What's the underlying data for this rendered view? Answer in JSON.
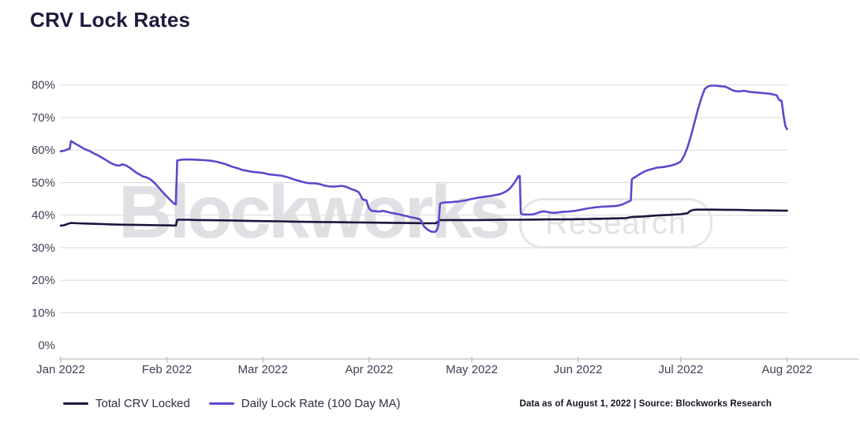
{
  "title": "CRV Lock Rates",
  "watermark": {
    "text": "Blockworks",
    "badge": "Research"
  },
  "footer": {
    "text": "Data as of August 1, 2022 | Source: Blockworks Research"
  },
  "chart_data": {
    "type": "line",
    "title": "CRV Lock Rates",
    "grid": "horizontal",
    "legend_position": "bottom-left",
    "x_axis": {
      "tick_labels": [
        "Jan 2022",
        "Feb 2022",
        "Mar 2022",
        "Apr 2022",
        "May 2022",
        "Jun 2022",
        "Jul 2022",
        "Aug 2022"
      ],
      "tick_days": [
        0,
        31,
        59,
        90,
        120,
        151,
        181,
        212
      ],
      "range_days": [
        0,
        212
      ]
    },
    "y_axis": {
      "min": 0,
      "max": 80,
      "step": 10,
      "suffix": "%",
      "tick_labels": [
        "0%",
        "10%",
        "20%",
        "30%",
        "40%",
        "50%",
        "60%",
        "70%",
        "80%"
      ]
    },
    "series": [
      {
        "name": "Total CRV Locked",
        "color": "#1b163f",
        "points": [
          [
            0,
            36.8
          ],
          [
            1,
            36.9
          ],
          [
            2,
            37.3
          ],
          [
            3,
            37.6
          ],
          [
            5,
            37.5
          ],
          [
            8,
            37.4
          ],
          [
            11,
            37.3
          ],
          [
            14,
            37.2
          ],
          [
            17,
            37.1
          ],
          [
            20,
            37.05
          ],
          [
            23,
            37.0
          ],
          [
            26,
            36.95
          ],
          [
            29,
            36.9
          ],
          [
            32,
            36.85
          ],
          [
            33.6,
            36.8
          ],
          [
            34,
            38.6
          ],
          [
            37,
            38.6
          ],
          [
            40,
            38.5
          ],
          [
            44,
            38.45
          ],
          [
            48,
            38.4
          ],
          [
            52,
            38.3
          ],
          [
            56,
            38.2
          ],
          [
            60,
            38.15
          ],
          [
            64,
            38.1
          ],
          [
            68,
            38.0
          ],
          [
            72,
            37.95
          ],
          [
            76,
            37.9
          ],
          [
            80,
            37.85
          ],
          [
            84,
            37.8
          ],
          [
            88,
            37.75
          ],
          [
            92,
            37.7
          ],
          [
            96,
            37.65
          ],
          [
            100,
            37.6
          ],
          [
            104,
            37.55
          ],
          [
            107,
            37.5
          ],
          [
            109.5,
            37.5
          ],
          [
            110.7,
            38.5
          ],
          [
            114,
            38.5
          ],
          [
            118,
            38.5
          ],
          [
            122,
            38.5
          ],
          [
            126,
            38.55
          ],
          [
            130,
            38.6
          ],
          [
            134,
            38.6
          ],
          [
            138,
            38.65
          ],
          [
            142,
            38.7
          ],
          [
            146,
            38.7
          ],
          [
            150,
            38.75
          ],
          [
            154,
            38.8
          ],
          [
            158,
            38.9
          ],
          [
            162,
            39.0
          ],
          [
            165,
            39.1
          ],
          [
            166.7,
            39.45
          ],
          [
            168,
            39.5
          ],
          [
            170,
            39.6
          ],
          [
            172,
            39.75
          ],
          [
            174,
            39.9
          ],
          [
            176,
            40.0
          ],
          [
            178,
            40.1
          ],
          [
            180,
            40.25
          ],
          [
            181,
            40.3
          ],
          [
            182,
            40.45
          ],
          [
            183,
            40.6
          ],
          [
            183.6,
            41.2
          ],
          [
            184.5,
            41.6
          ],
          [
            186,
            41.7
          ],
          [
            190,
            41.7
          ],
          [
            194,
            41.65
          ],
          [
            198,
            41.6
          ],
          [
            202,
            41.5
          ],
          [
            206,
            41.45
          ],
          [
            210,
            41.4
          ],
          [
            212,
            41.35
          ]
        ]
      },
      {
        "name": "Daily Lock Rate (100 Day MA)",
        "color": "#5a49cc",
        "points": [
          [
            0,
            59.6
          ],
          [
            1,
            59.8
          ],
          [
            2,
            60.2
          ],
          [
            2.6,
            60.4
          ],
          [
            3,
            62.8
          ],
          [
            4,
            62.1
          ],
          [
            5,
            61.5
          ],
          [
            6,
            60.9
          ],
          [
            7,
            60.3
          ],
          [
            8,
            59.9
          ],
          [
            9,
            59.4
          ],
          [
            10,
            58.8
          ],
          [
            11,
            58.3
          ],
          [
            12,
            57.7
          ],
          [
            13,
            57.1
          ],
          [
            14,
            56.4
          ],
          [
            15,
            55.8
          ],
          [
            16,
            55.4
          ],
          [
            17,
            55.2
          ],
          [
            18,
            55.6
          ],
          [
            19,
            55.3
          ],
          [
            20,
            54.7
          ],
          [
            21,
            53.9
          ],
          [
            22,
            53.1
          ],
          [
            23,
            52.5
          ],
          [
            24,
            51.9
          ],
          [
            25,
            51.6
          ],
          [
            26,
            51.1
          ],
          [
            27,
            50.3
          ],
          [
            28,
            49.2
          ],
          [
            29,
            48.0
          ],
          [
            30,
            46.8
          ],
          [
            31,
            45.7
          ],
          [
            32,
            44.6
          ],
          [
            33,
            43.6
          ],
          [
            33.6,
            43.3
          ],
          [
            34,
            56.8
          ],
          [
            35,
            57.0
          ],
          [
            36,
            57.1
          ],
          [
            38,
            57.1
          ],
          [
            40,
            57.0
          ],
          [
            42,
            56.9
          ],
          [
            44,
            56.7
          ],
          [
            45,
            56.5
          ],
          [
            46,
            56.3
          ],
          [
            47,
            56.0
          ],
          [
            48,
            55.7
          ],
          [
            49,
            55.3
          ],
          [
            50,
            54.9
          ],
          [
            51,
            54.6
          ],
          [
            52,
            54.3
          ],
          [
            53,
            53.9
          ],
          [
            54,
            53.7
          ],
          [
            55,
            53.5
          ],
          [
            56,
            53.3
          ],
          [
            57,
            53.2
          ],
          [
            58,
            53.1
          ],
          [
            59,
            53.0
          ],
          [
            60,
            52.7
          ],
          [
            61,
            52.5
          ],
          [
            63,
            52.3
          ],
          [
            64,
            52.2
          ],
          [
            65,
            52.0
          ],
          [
            66,
            51.7
          ],
          [
            67,
            51.4
          ],
          [
            68,
            51.0
          ],
          [
            69,
            50.7
          ],
          [
            70,
            50.4
          ],
          [
            71,
            50.1
          ],
          [
            72,
            49.9
          ],
          [
            73,
            49.8
          ],
          [
            74,
            49.8
          ],
          [
            75,
            49.7
          ],
          [
            76,
            49.4
          ],
          [
            77,
            49.1
          ],
          [
            78,
            48.9
          ],
          [
            79,
            48.8
          ],
          [
            80,
            48.8
          ],
          [
            81,
            48.9
          ],
          [
            82,
            49.0
          ],
          [
            83,
            48.8
          ],
          [
            84,
            48.4
          ],
          [
            85,
            47.9
          ],
          [
            86,
            47.6
          ],
          [
            87,
            47.0
          ],
          [
            87.6,
            45.9
          ],
          [
            88,
            45.0
          ],
          [
            88.4,
            44.7
          ],
          [
            89.2,
            44.6
          ],
          [
            89.6,
            43.2
          ],
          [
            90,
            42.1
          ],
          [
            90.5,
            41.5
          ],
          [
            91,
            41.3
          ],
          [
            92,
            41.2
          ],
          [
            93,
            41.1
          ],
          [
            94,
            41.3
          ],
          [
            95,
            41.1
          ],
          [
            96,
            40.8
          ],
          [
            97,
            40.6
          ],
          [
            98,
            40.4
          ],
          [
            99,
            40.2
          ],
          [
            100,
            39.9
          ],
          [
            101,
            39.7
          ],
          [
            102,
            39.4
          ],
          [
            103,
            39.2
          ],
          [
            104,
            39.0
          ],
          [
            105,
            38.6
          ],
          [
            105.5,
            37.6
          ],
          [
            106,
            36.6
          ],
          [
            107,
            35.6
          ],
          [
            108,
            35.0
          ],
          [
            109,
            34.8
          ],
          [
            109.6,
            35.1
          ],
          [
            110,
            36.0
          ],
          [
            110.3,
            37.3
          ],
          [
            110.7,
            43.5
          ],
          [
            111,
            43.7
          ],
          [
            112,
            43.9
          ],
          [
            114,
            44.0
          ],
          [
            116,
            44.2
          ],
          [
            118,
            44.5
          ],
          [
            120,
            45.0
          ],
          [
            122,
            45.4
          ],
          [
            124,
            45.7
          ],
          [
            126,
            46.0
          ],
          [
            128,
            46.4
          ],
          [
            129,
            46.8
          ],
          [
            130,
            47.3
          ],
          [
            131,
            48.1
          ],
          [
            132,
            49.3
          ],
          [
            133,
            50.9
          ],
          [
            133.6,
            52.0
          ],
          [
            134,
            52.0
          ],
          [
            134.3,
            40.5
          ],
          [
            135,
            40.2
          ],
          [
            136,
            40.2
          ],
          [
            137,
            40.2
          ],
          [
            138,
            40.3
          ],
          [
            139,
            40.6
          ],
          [
            140,
            41.0
          ],
          [
            141,
            41.2
          ],
          [
            142,
            41.0
          ],
          [
            143,
            40.8
          ],
          [
            144,
            40.7
          ],
          [
            145,
            40.8
          ],
          [
            146,
            41.0
          ],
          [
            148,
            41.1
          ],
          [
            150,
            41.3
          ],
          [
            151,
            41.5
          ],
          [
            152,
            41.7
          ],
          [
            153,
            41.9
          ],
          [
            154,
            42.1
          ],
          [
            156,
            42.4
          ],
          [
            158,
            42.6
          ],
          [
            160,
            42.7
          ],
          [
            162,
            42.8
          ],
          [
            163,
            43.0
          ],
          [
            164,
            43.3
          ],
          [
            165,
            43.8
          ],
          [
            166,
            44.3
          ],
          [
            166.4,
            44.5
          ],
          [
            166.7,
            51.0
          ],
          [
            167,
            51.3
          ],
          [
            168,
            51.9
          ],
          [
            169,
            52.6
          ],
          [
            170,
            53.2
          ],
          [
            171,
            53.7
          ],
          [
            172,
            54.0
          ],
          [
            173,
            54.3
          ],
          [
            174,
            54.6
          ],
          [
            175,
            54.7
          ],
          [
            176,
            54.8
          ],
          [
            177,
            55.0
          ],
          [
            178,
            55.2
          ],
          [
            179,
            55.5
          ],
          [
            180,
            55.9
          ],
          [
            181,
            56.5
          ],
          [
            182,
            58.3
          ],
          [
            183,
            61.0
          ],
          [
            184,
            64.5
          ],
          [
            185,
            68.5
          ],
          [
            186,
            72.5
          ],
          [
            187,
            76.0
          ],
          [
            188,
            78.8
          ],
          [
            189,
            79.6
          ],
          [
            190,
            79.8
          ],
          [
            191,
            79.8
          ],
          [
            192,
            79.7
          ],
          [
            193,
            79.6
          ],
          [
            194,
            79.5
          ],
          [
            195,
            79.0
          ],
          [
            196,
            78.4
          ],
          [
            197,
            78.1
          ],
          [
            198,
            78.0
          ],
          [
            199,
            78.2
          ],
          [
            200,
            78.1
          ],
          [
            201,
            77.9
          ],
          [
            202,
            77.8
          ],
          [
            203,
            77.7
          ],
          [
            204,
            77.6
          ],
          [
            205,
            77.5
          ],
          [
            206,
            77.4
          ],
          [
            207,
            77.3
          ],
          [
            208,
            77.1
          ],
          [
            209,
            76.8
          ],
          [
            209.4,
            76.0
          ],
          [
            209.8,
            75.3
          ],
          [
            210.4,
            75.2
          ],
          [
            211,
            70.5
          ],
          [
            211.5,
            67.5
          ],
          [
            212,
            66.4
          ]
        ]
      }
    ]
  }
}
